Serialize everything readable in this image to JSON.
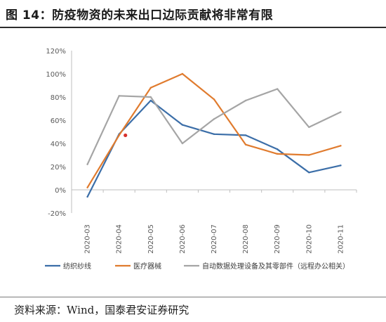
{
  "figure": {
    "title": "图 14：防疫物资的未来出口边际贡献将非常有限",
    "source": "资料来源：Wind，国泰君安证券研究"
  },
  "chart_data": {
    "type": "line",
    "categories": [
      "2020-03",
      "2020-04",
      "2020-05",
      "2020-06",
      "2020-07",
      "2020-08",
      "2020-09",
      "2020-10",
      "2020-11"
    ],
    "ylim": [
      -20,
      120
    ],
    "yticks": [
      -20,
      0,
      20,
      40,
      60,
      80,
      100,
      120
    ],
    "ytick_labels": [
      "-20%",
      "0%",
      "20%",
      "40%",
      "60%",
      "80%",
      "100%",
      "120%"
    ],
    "grid": false,
    "legend_position": "bottom",
    "series": [
      {
        "name": "纺织纱线",
        "color": "#3b6ea8",
        "values": [
          -6,
          48,
          77,
          56,
          48,
          47,
          35,
          15,
          21
        ]
      },
      {
        "name": "医疗器械",
        "color": "#e07b2e",
        "values": [
          2,
          47,
          88,
          100,
          78,
          39,
          31,
          30,
          38
        ]
      },
      {
        "name": "自动数据处理设备及其零部件（远程办公相关）",
        "color": "#a5a5a5",
        "values": [
          22,
          81,
          80,
          40,
          61,
          77,
          87,
          54,
          67
        ]
      }
    ],
    "annotations": [
      {
        "type": "point",
        "x": 1.2,
        "y": 47,
        "color": "#d8302c"
      }
    ]
  }
}
